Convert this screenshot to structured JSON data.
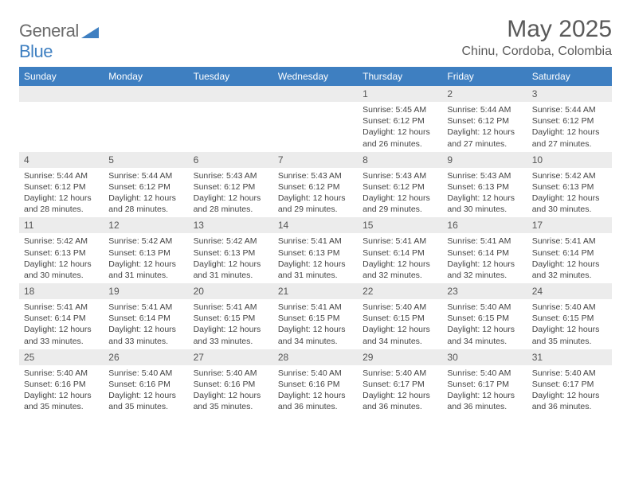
{
  "brand": {
    "part1": "General",
    "part2": "Blue"
  },
  "title": "May 2025",
  "location": "Chinu, Cordoba, Colombia",
  "colors": {
    "header_bg": "#3e7fc1",
    "header_text": "#ffffff",
    "daynum_bg": "#ececec",
    "text": "#444444"
  },
  "weekdays": [
    "Sunday",
    "Monday",
    "Tuesday",
    "Wednesday",
    "Thursday",
    "Friday",
    "Saturday"
  ],
  "weeks": [
    [
      null,
      null,
      null,
      null,
      {
        "n": "1",
        "sr": "5:45 AM",
        "ss": "6:12 PM",
        "dl": "12 hours and 26 minutes."
      },
      {
        "n": "2",
        "sr": "5:44 AM",
        "ss": "6:12 PM",
        "dl": "12 hours and 27 minutes."
      },
      {
        "n": "3",
        "sr": "5:44 AM",
        "ss": "6:12 PM",
        "dl": "12 hours and 27 minutes."
      }
    ],
    [
      {
        "n": "4",
        "sr": "5:44 AM",
        "ss": "6:12 PM",
        "dl": "12 hours and 28 minutes."
      },
      {
        "n": "5",
        "sr": "5:44 AM",
        "ss": "6:12 PM",
        "dl": "12 hours and 28 minutes."
      },
      {
        "n": "6",
        "sr": "5:43 AM",
        "ss": "6:12 PM",
        "dl": "12 hours and 28 minutes."
      },
      {
        "n": "7",
        "sr": "5:43 AM",
        "ss": "6:12 PM",
        "dl": "12 hours and 29 minutes."
      },
      {
        "n": "8",
        "sr": "5:43 AM",
        "ss": "6:12 PM",
        "dl": "12 hours and 29 minutes."
      },
      {
        "n": "9",
        "sr": "5:43 AM",
        "ss": "6:13 PM",
        "dl": "12 hours and 30 minutes."
      },
      {
        "n": "10",
        "sr": "5:42 AM",
        "ss": "6:13 PM",
        "dl": "12 hours and 30 minutes."
      }
    ],
    [
      {
        "n": "11",
        "sr": "5:42 AM",
        "ss": "6:13 PM",
        "dl": "12 hours and 30 minutes."
      },
      {
        "n": "12",
        "sr": "5:42 AM",
        "ss": "6:13 PM",
        "dl": "12 hours and 31 minutes."
      },
      {
        "n": "13",
        "sr": "5:42 AM",
        "ss": "6:13 PM",
        "dl": "12 hours and 31 minutes."
      },
      {
        "n": "14",
        "sr": "5:41 AM",
        "ss": "6:13 PM",
        "dl": "12 hours and 31 minutes."
      },
      {
        "n": "15",
        "sr": "5:41 AM",
        "ss": "6:14 PM",
        "dl": "12 hours and 32 minutes."
      },
      {
        "n": "16",
        "sr": "5:41 AM",
        "ss": "6:14 PM",
        "dl": "12 hours and 32 minutes."
      },
      {
        "n": "17",
        "sr": "5:41 AM",
        "ss": "6:14 PM",
        "dl": "12 hours and 32 minutes."
      }
    ],
    [
      {
        "n": "18",
        "sr": "5:41 AM",
        "ss": "6:14 PM",
        "dl": "12 hours and 33 minutes."
      },
      {
        "n": "19",
        "sr": "5:41 AM",
        "ss": "6:14 PM",
        "dl": "12 hours and 33 minutes."
      },
      {
        "n": "20",
        "sr": "5:41 AM",
        "ss": "6:15 PM",
        "dl": "12 hours and 33 minutes."
      },
      {
        "n": "21",
        "sr": "5:41 AM",
        "ss": "6:15 PM",
        "dl": "12 hours and 34 minutes."
      },
      {
        "n": "22",
        "sr": "5:40 AM",
        "ss": "6:15 PM",
        "dl": "12 hours and 34 minutes."
      },
      {
        "n": "23",
        "sr": "5:40 AM",
        "ss": "6:15 PM",
        "dl": "12 hours and 34 minutes."
      },
      {
        "n": "24",
        "sr": "5:40 AM",
        "ss": "6:15 PM",
        "dl": "12 hours and 35 minutes."
      }
    ],
    [
      {
        "n": "25",
        "sr": "5:40 AM",
        "ss": "6:16 PM",
        "dl": "12 hours and 35 minutes."
      },
      {
        "n": "26",
        "sr": "5:40 AM",
        "ss": "6:16 PM",
        "dl": "12 hours and 35 minutes."
      },
      {
        "n": "27",
        "sr": "5:40 AM",
        "ss": "6:16 PM",
        "dl": "12 hours and 35 minutes."
      },
      {
        "n": "28",
        "sr": "5:40 AM",
        "ss": "6:16 PM",
        "dl": "12 hours and 36 minutes."
      },
      {
        "n": "29",
        "sr": "5:40 AM",
        "ss": "6:17 PM",
        "dl": "12 hours and 36 minutes."
      },
      {
        "n": "30",
        "sr": "5:40 AM",
        "ss": "6:17 PM",
        "dl": "12 hours and 36 minutes."
      },
      {
        "n": "31",
        "sr": "5:40 AM",
        "ss": "6:17 PM",
        "dl": "12 hours and 36 minutes."
      }
    ]
  ],
  "labels": {
    "sunrise": "Sunrise:",
    "sunset": "Sunset:",
    "daylight": "Daylight:"
  }
}
